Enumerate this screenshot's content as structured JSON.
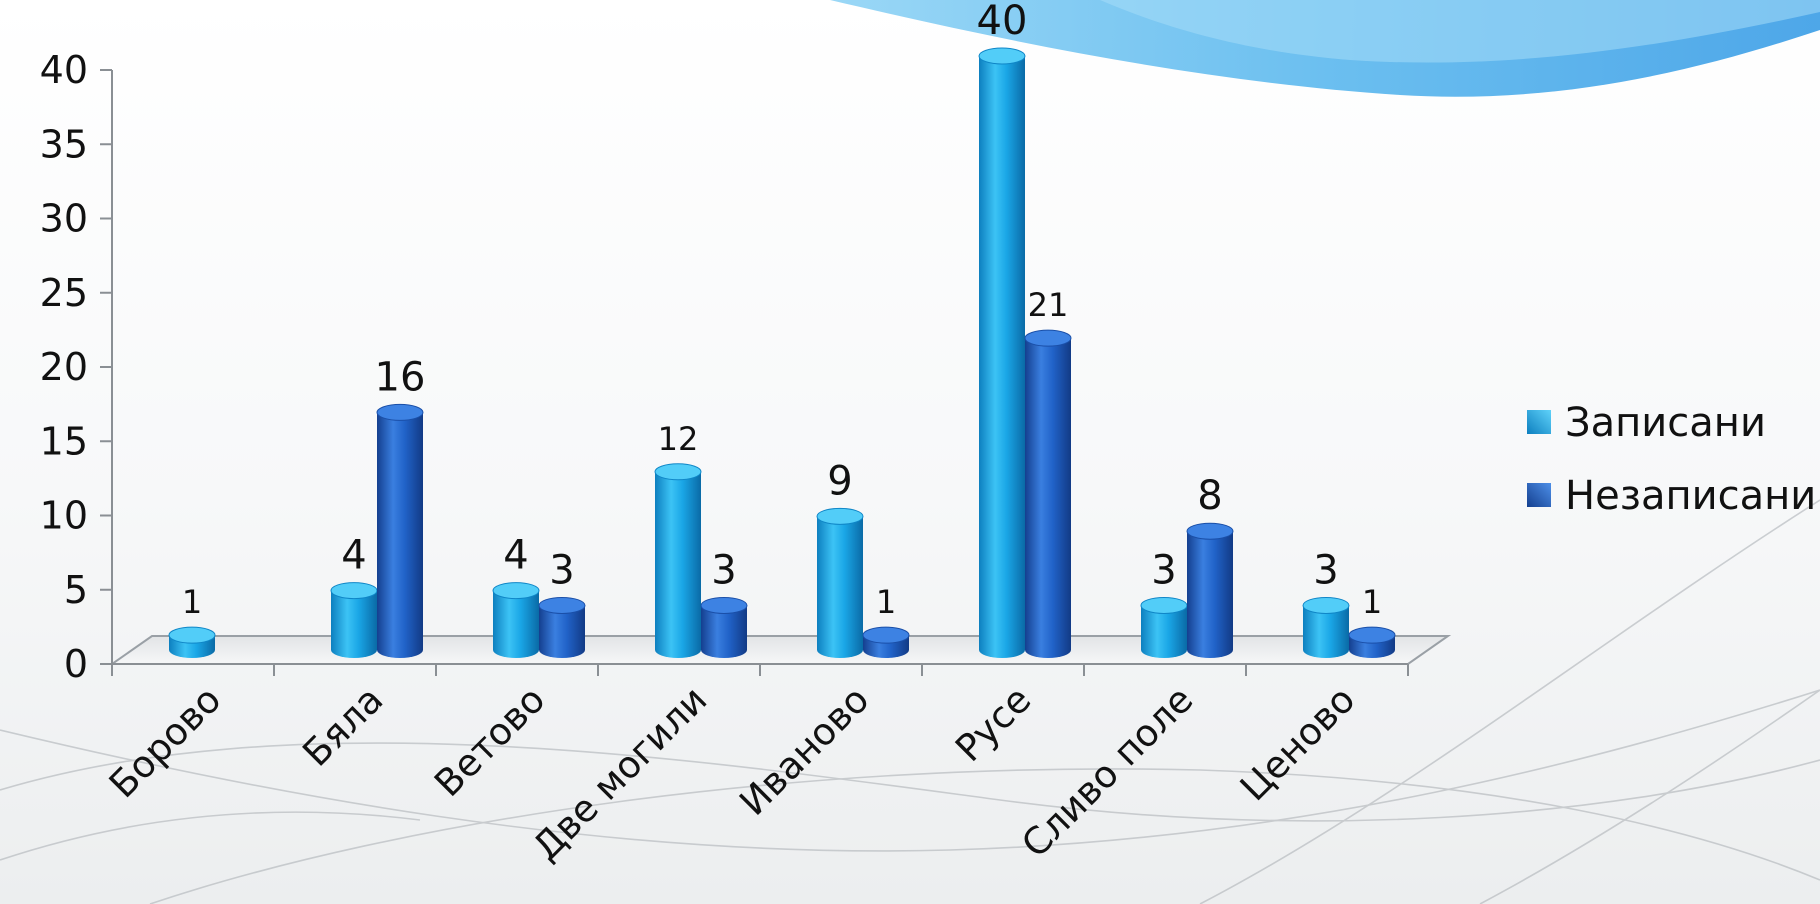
{
  "chart_data": {
    "type": "bar",
    "categories": [
      "Борово",
      "Бяла",
      "Ветово",
      "Две могили",
      "Иваново",
      "Русе",
      "Сливо поле",
      "Ценово"
    ],
    "series": [
      {
        "name": "Записани",
        "values": [
          1,
          4,
          4,
          12,
          9,
          40,
          3,
          3
        ],
        "color": "#1aa6e6"
      },
      {
        "name": "Незаписани",
        "values": [
          null,
          16,
          3,
          3,
          1,
          21,
          8,
          1
        ],
        "color": "#2163c9"
      }
    ],
    "y_ticks": [
      "0",
      "5",
      "10",
      "15",
      "20",
      "25",
      "30",
      "35",
      "40"
    ],
    "ylim": [
      0,
      40
    ],
    "legend_position": "right",
    "grid": false,
    "style": "3d-cylinder"
  }
}
